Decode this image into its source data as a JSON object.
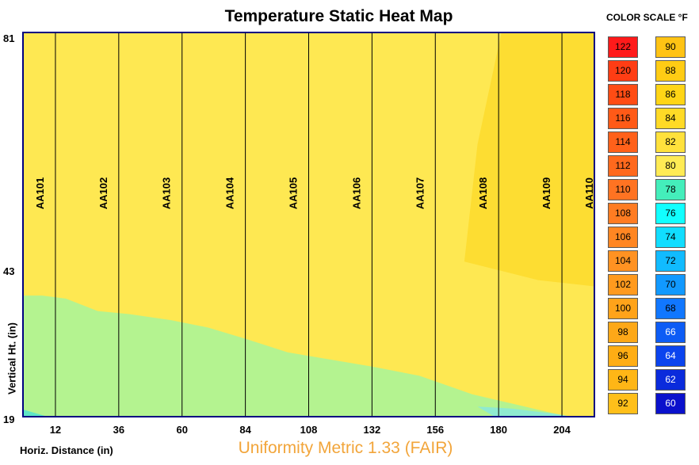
{
  "chart_data": {
    "type": "heatmap",
    "title": "Temperature Static Heat Map",
    "xlabel": "Horiz. Distance (in)",
    "ylabel": "Vertical Ht. (in)",
    "xlim": [
      0,
      216
    ],
    "ylim": [
      19,
      81
    ],
    "x_ticks": [
      "12",
      "36",
      "60",
      "84",
      "108",
      "132",
      "156",
      "180",
      "204"
    ],
    "y_ticks": [
      "81",
      "43",
      "19"
    ],
    "sensors": [
      {
        "label": "AA101",
        "x": 12
      },
      {
        "label": "AA102",
        "x": 36
      },
      {
        "label": "AA103",
        "x": 60
      },
      {
        "label": "AA104",
        "x": 84
      },
      {
        "label": "AA105",
        "x": 108
      },
      {
        "label": "AA106",
        "x": 132
      },
      {
        "label": "AA107",
        "x": 156
      },
      {
        "label": "AA108",
        "x": 180
      },
      {
        "label": "AA109",
        "x": 204
      },
      {
        "label": "AA110",
        "x": 216
      }
    ],
    "regions": [
      {
        "name": "base",
        "temp_range": "80-82 °F",
        "color": "#fee852",
        "points": [
          [
            0,
            81
          ],
          [
            216,
            81
          ],
          [
            216,
            19
          ],
          [
            0,
            19
          ]
        ]
      },
      {
        "name": "warm-zone",
        "temp_range": "82-84 °F",
        "color": "#fddd32",
        "points": [
          [
            181,
            81
          ],
          [
            216,
            81
          ],
          [
            216,
            40
          ],
          [
            195,
            41
          ],
          [
            167,
            44
          ],
          [
            172,
            63
          ]
        ]
      },
      {
        "name": "cool-zone",
        "temp_range": "78-80 °F",
        "color": "#b4f390",
        "points": [
          [
            0,
            38.5
          ],
          [
            7,
            38.5
          ],
          [
            16,
            38
          ],
          [
            28,
            36
          ],
          [
            40,
            35.5
          ],
          [
            56,
            34.5
          ],
          [
            70,
            33.3
          ],
          [
            84,
            31.5
          ],
          [
            100,
            29.3
          ],
          [
            118,
            28
          ],
          [
            132,
            27
          ],
          [
            150,
            25.5
          ],
          [
            170,
            22.5
          ],
          [
            185,
            21
          ],
          [
            200,
            19.5
          ],
          [
            206,
            19
          ],
          [
            0,
            19
          ]
        ]
      },
      {
        "name": "cold-edge",
        "temp_range": "76-78 °F",
        "color": "#5ee6c5",
        "points": [
          [
            0,
            19
          ],
          [
            0,
            20
          ],
          [
            8,
            19
          ]
        ]
      },
      {
        "name": "teal-edge",
        "temp_range": "76-78 °F",
        "color": "#8fead0",
        "points": [
          [
            172,
            20.5
          ],
          [
            185,
            20.2
          ],
          [
            200,
            19.4
          ],
          [
            206,
            19
          ],
          [
            178,
            19
          ]
        ]
      }
    ]
  },
  "color_scale": {
    "title": "COLOR SCALE °F",
    "left_column": [
      {
        "value": "122",
        "color": "#ff1a1a"
      },
      {
        "value": "120",
        "color": "#ff3d14"
      },
      {
        "value": "118",
        "color": "#ff4c14"
      },
      {
        "value": "116",
        "color": "#ff5a17"
      },
      {
        "value": "114",
        "color": "#ff611a"
      },
      {
        "value": "112",
        "color": "#ff691d"
      },
      {
        "value": "110",
        "color": "#ff7322"
      },
      {
        "value": "108",
        "color": "#ff7c22"
      },
      {
        "value": "106",
        "color": "#ff8622"
      },
      {
        "value": "104",
        "color": "#ff9222"
      },
      {
        "value": "102",
        "color": "#ff9a1e"
      },
      {
        "value": "100",
        "color": "#ffa31a"
      },
      {
        "value": "98",
        "color": "#fda818"
      },
      {
        "value": "96",
        "color": "#ffad14"
      },
      {
        "value": "94",
        "color": "#ffb616"
      },
      {
        "value": "92",
        "color": "#ffbf1a"
      }
    ],
    "right_column": [
      {
        "value": "90",
        "color": "#ffc314",
        "text_color": "#000000"
      },
      {
        "value": "88",
        "color": "#ffcc14",
        "text_color": "#000000"
      },
      {
        "value": "86",
        "color": "#ffd516",
        "text_color": "#000000"
      },
      {
        "value": "84",
        "color": "#ffda26",
        "text_color": "#000000"
      },
      {
        "value": "82",
        "color": "#ffe13c",
        "text_color": "#000000"
      },
      {
        "value": "80",
        "color": "#ffeb54",
        "text_color": "#000000"
      },
      {
        "value": "78",
        "color": "#44eebb",
        "text_color": "#000000"
      },
      {
        "value": "76",
        "color": "#11ffff",
        "text_color": "#000000"
      },
      {
        "value": "74",
        "color": "#11ddff",
        "text_color": "#000000"
      },
      {
        "value": "72",
        "color": "#11bbff",
        "text_color": "#000000"
      },
      {
        "value": "70",
        "color": "#1199ff",
        "text_color": "#000000"
      },
      {
        "value": "68",
        "color": "#1177ff",
        "text_color": "#000000"
      },
      {
        "value": "66",
        "color": "#0d5cf5",
        "text_color": "#ffffff"
      },
      {
        "value": "64",
        "color": "#0b44ee",
        "text_color": "#ffffff"
      },
      {
        "value": "62",
        "color": "#0a2bdc",
        "text_color": "#ffffff"
      },
      {
        "value": "60",
        "color": "#0a11cc",
        "text_color": "#ffffff"
      }
    ]
  },
  "uniformity_metric": "Uniformity Metric 1.33 (FAIR)",
  "colors": {
    "frame": "#000080",
    "grid_line": "#000000"
  }
}
